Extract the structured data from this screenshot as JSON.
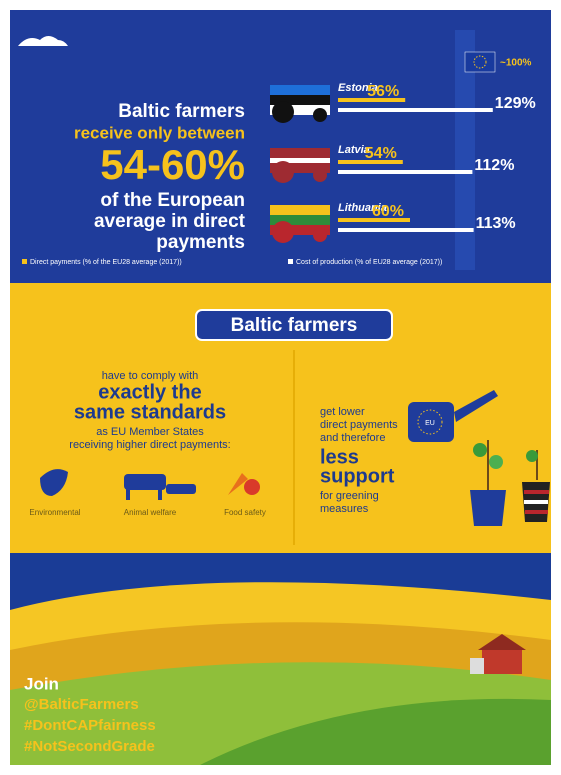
{
  "header": {
    "title_lines": [
      "Baltic farmers",
      "receive only between",
      "54-60%",
      "of the European",
      "average in direct",
      "payments"
    ],
    "eu_label": "~100%"
  },
  "countries": [
    {
      "name": "Estonia",
      "direct": 56,
      "direct_label": "56%",
      "cost": 129,
      "cost_label": "129%"
    },
    {
      "name": "Latvia",
      "direct": 54,
      "direct_label": "54%",
      "cost": 112,
      "cost_label": "112%"
    },
    {
      "name": "Lithuania",
      "direct": 60,
      "direct_label": "60%",
      "cost": 113,
      "cost_label": "113%"
    }
  ],
  "legend": [
    "Direct payments (% of the EU28 average (2017))",
    "Cost of production (% of EU28 average (2017))"
  ],
  "standards": {
    "heading": "Baltic farmers",
    "left": [
      "have to comply with",
      "exactly the",
      "same standards",
      "as EU Member States",
      "receiving higher direct payments:"
    ],
    "icons": [
      "Environmental",
      "Animal welfare",
      "Food safety"
    ],
    "right": [
      "get lower",
      "direct payments",
      "and therefore",
      "less",
      "support",
      "for greening",
      "measures"
    ],
    "can_label": "EU"
  },
  "footer": [
    "Join",
    "@BalticFarmers",
    "#DontCAPfairness",
    "#NotSecondGrade"
  ]
}
